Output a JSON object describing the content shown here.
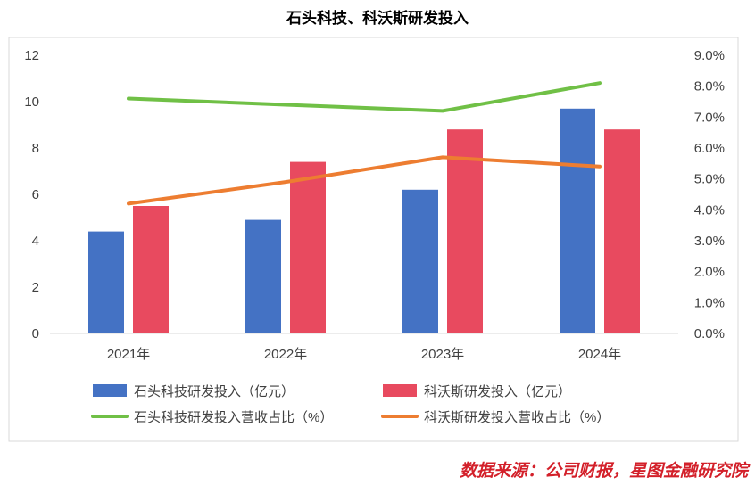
{
  "chart_data": {
    "type": "bar",
    "title": "石头科技、科沃斯研发投入",
    "categories": [
      "2021年",
      "2022年",
      "2023年",
      "2024年"
    ],
    "y_left": {
      "min": 0,
      "max": 12,
      "ticks": [
        "0",
        "2",
        "4",
        "6",
        "8",
        "10",
        "12"
      ]
    },
    "y_right": {
      "min": 0,
      "max": 9,
      "ticks": [
        "0.0%",
        "1.0%",
        "2.0%",
        "3.0%",
        "4.0%",
        "5.0%",
        "6.0%",
        "7.0%",
        "8.0%",
        "9.0%"
      ]
    },
    "series": [
      {
        "name": "石头科技研发投入（亿元）",
        "kind": "bar",
        "axis": "left",
        "color": "#4472c4",
        "values": [
          4.4,
          4.9,
          6.2,
          9.7
        ]
      },
      {
        "name": "科沃斯研发投入（亿元）",
        "kind": "bar",
        "axis": "left",
        "color": "#e84a5f",
        "values": [
          5.5,
          7.4,
          8.8,
          8.8
        ]
      },
      {
        "name": "石头科技研发投入营收占比（%）",
        "kind": "line",
        "axis": "right",
        "color": "#70c046",
        "values": [
          7.6,
          7.4,
          7.2,
          8.1
        ]
      },
      {
        "name": "科沃斯研发投入营收占比（%）",
        "kind": "line",
        "axis": "right",
        "color": "#ed7d31",
        "values": [
          4.2,
          4.9,
          5.7,
          5.4
        ]
      }
    ],
    "legend_position": "bottom",
    "grid": false
  },
  "source_note": "数据来源：公司财报，星图金融研究院"
}
